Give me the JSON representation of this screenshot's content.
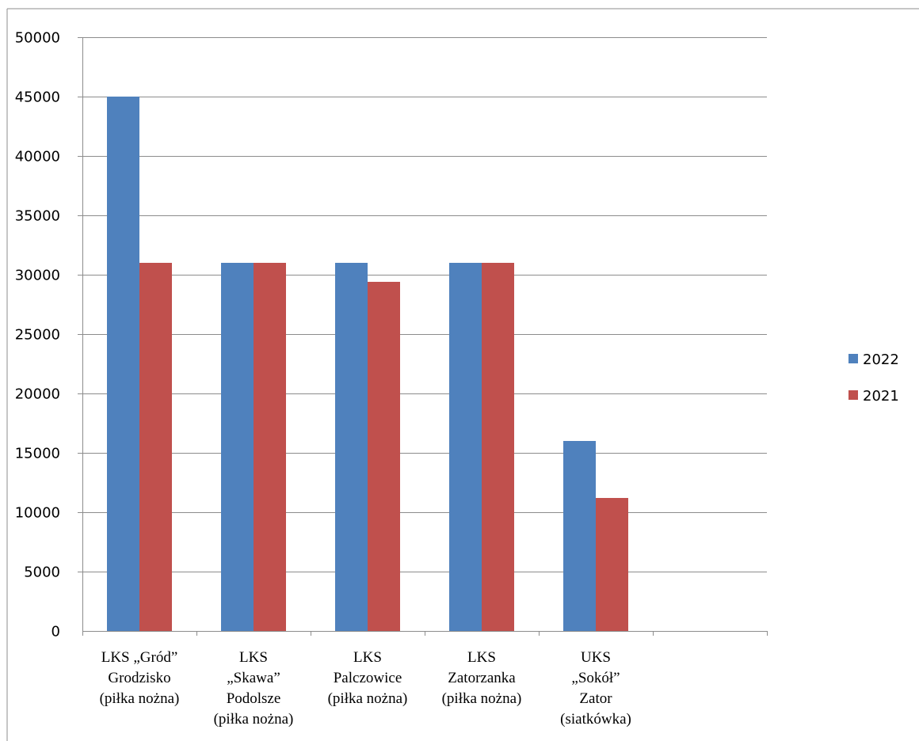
{
  "chart_data": {
    "type": "bar",
    "title": "",
    "xlabel": "",
    "ylabel": "",
    "categories": [
      [
        "LKS  „Gród”",
        "Grodzisko",
        "(piłka nożna)"
      ],
      [
        "LKS",
        "„Skawa”",
        "Podolsze",
        "(piłka nożna)"
      ],
      [
        "LKS",
        "Palczowice",
        "(piłka nożna)"
      ],
      [
        "LKS",
        "Zatorzanka",
        "(piłka nożna)"
      ],
      [
        "UKS",
        "„Sokół”",
        "Zator",
        "(siatkówka)"
      ],
      [
        ""
      ]
    ],
    "series": [
      {
        "name": "2022",
        "color": "#4f81bd",
        "values": [
          45000,
          31000,
          31000,
          31000,
          16000,
          null
        ]
      },
      {
        "name": "2021",
        "color": "#c0504d",
        "values": [
          31000,
          31000,
          29400,
          31000,
          11200,
          null
        ]
      }
    ],
    "ylim": [
      0,
      50000
    ],
    "yticks": [
      0,
      5000,
      10000,
      15000,
      20000,
      25000,
      30000,
      35000,
      40000,
      45000,
      50000
    ],
    "grid": true,
    "legend_position": "right"
  }
}
